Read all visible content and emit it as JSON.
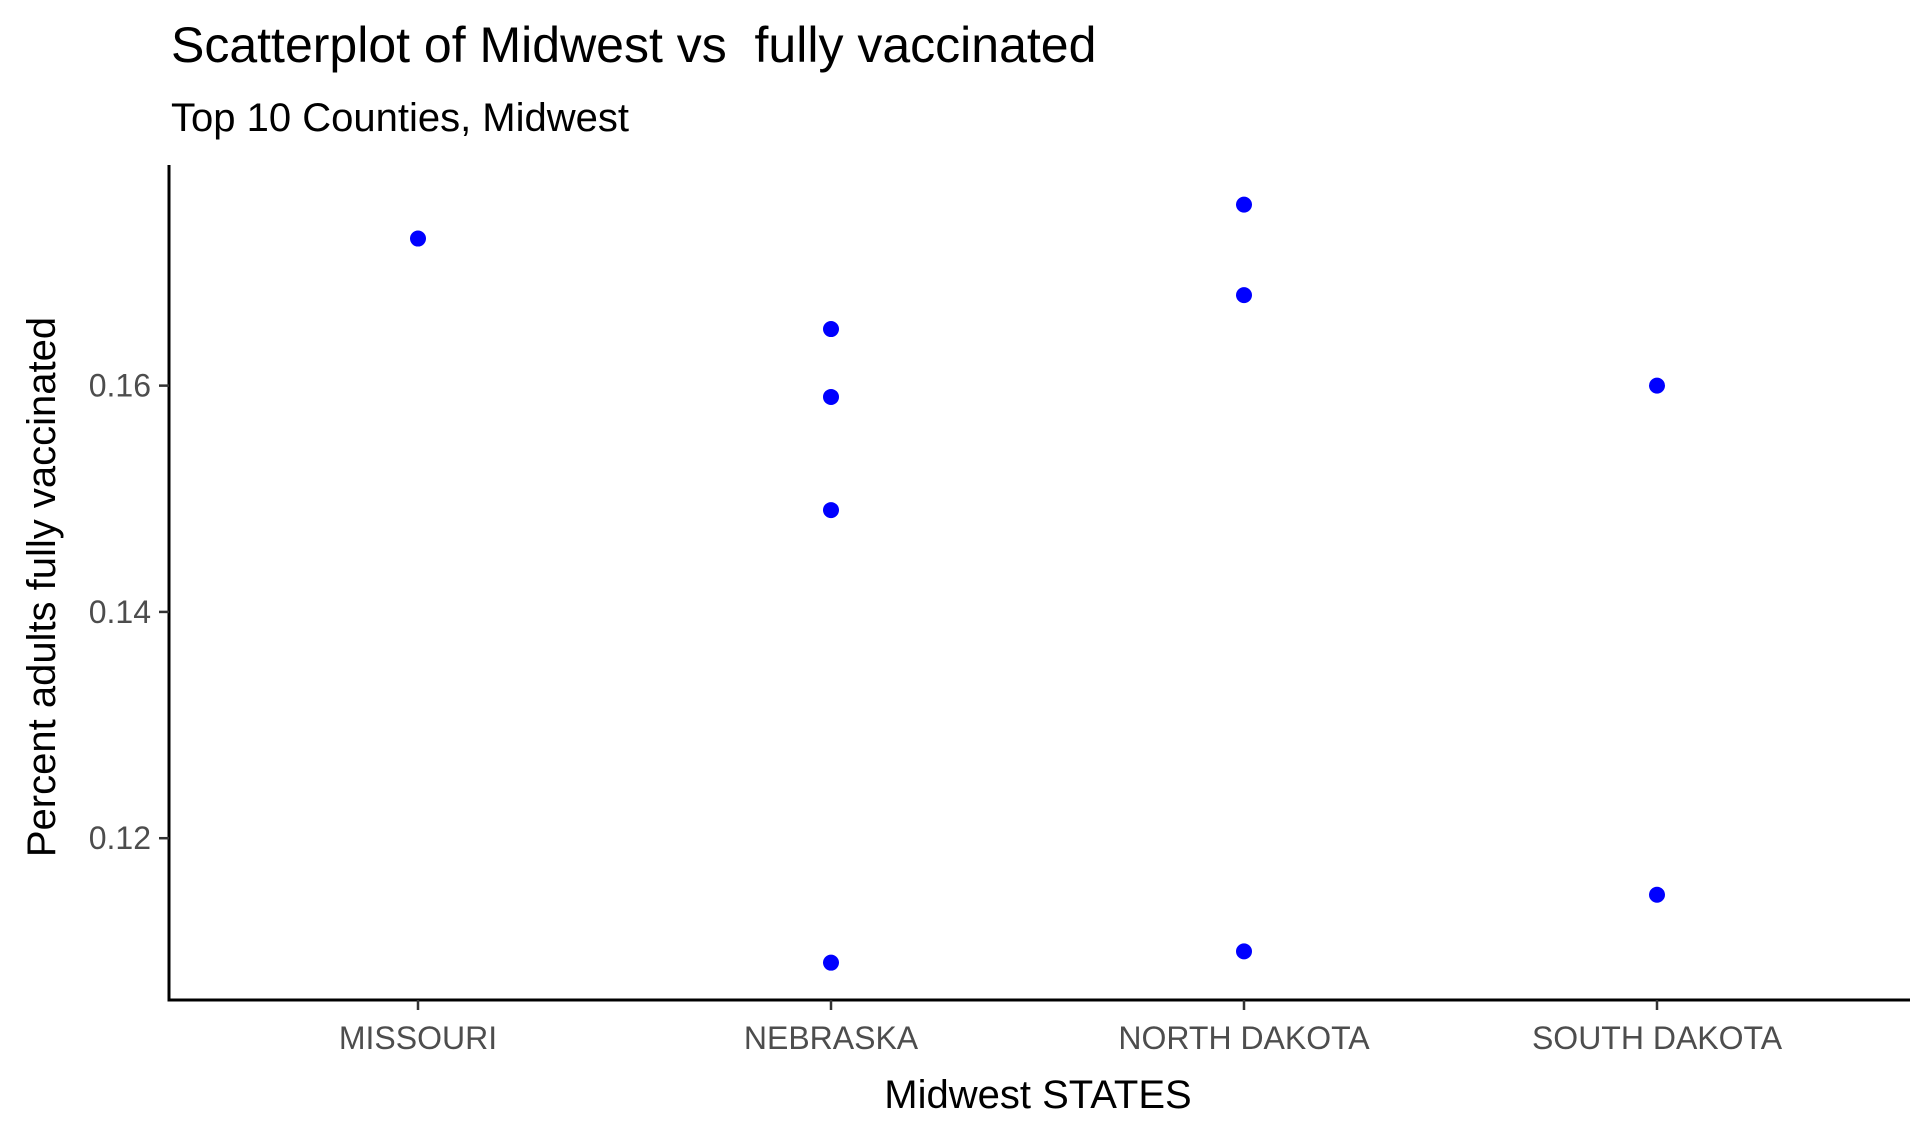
{
  "chart_data": {
    "type": "scatter",
    "title": "Scatterplot of Midwest vs  fully vaccinated",
    "subtitle": "Top 10 Counties, Midwest",
    "xlabel": "Midwest STATES",
    "ylabel": "Percent adults fully vaccinated",
    "categories": [
      "MISSOURI",
      "NEBRASKA",
      "NORTH DAKOTA",
      "SOUTH DAKOTA"
    ],
    "y_ticks": [
      0.12,
      0.14,
      0.16
    ],
    "y_tick_labels": [
      "0.12",
      "0.14",
      "0.16"
    ],
    "ylim": [
      0.1057,
      0.1795
    ],
    "grid": false,
    "point_color": "#0000FF",
    "points": [
      {
        "x": "MISSOURI",
        "y": 0.173
      },
      {
        "x": "NEBRASKA",
        "y": 0.165
      },
      {
        "x": "NEBRASKA",
        "y": 0.159
      },
      {
        "x": "NEBRASKA",
        "y": 0.149
      },
      {
        "x": "NEBRASKA",
        "y": 0.109
      },
      {
        "x": "NORTH DAKOTA",
        "y": 0.176
      },
      {
        "x": "NORTH DAKOTA",
        "y": 0.168
      },
      {
        "x": "NORTH DAKOTA",
        "y": 0.11
      },
      {
        "x": "SOUTH DAKOTA",
        "y": 0.16
      },
      {
        "x": "SOUTH DAKOTA",
        "y": 0.115
      }
    ]
  }
}
